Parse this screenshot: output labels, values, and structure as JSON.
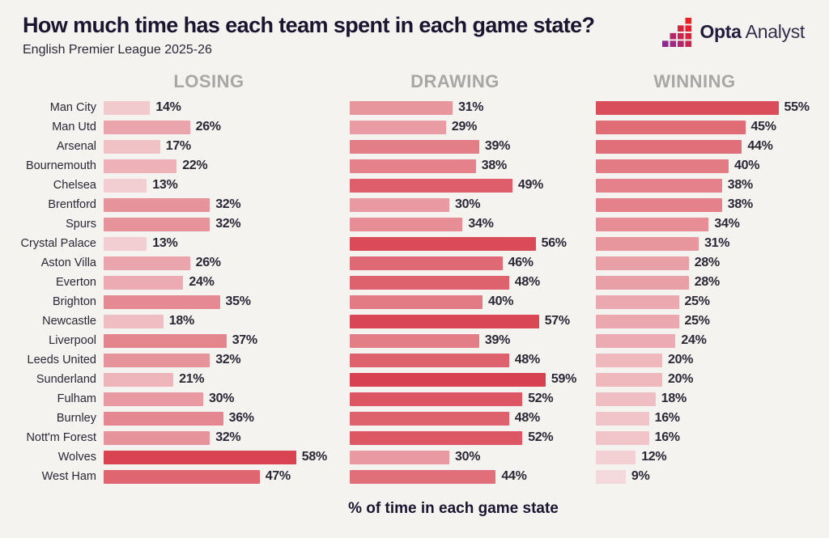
{
  "header": {
    "title": "How much time has each team spent in each game state?",
    "subtitle": "English Premier League 2025-26",
    "logo": {
      "brand_bold": "Opta",
      "brand_light": "Analyst",
      "icon": "opta-stairs-icon",
      "icon_colors": [
        "#8a2a8f",
        "#a1287f",
        "#b62666",
        "#ca2450",
        "#dc213c",
        "#ea1e2e",
        "#f01f24"
      ]
    }
  },
  "chart_data": {
    "type": "bar",
    "orientation": "horizontal",
    "title": "How much time has each team spent in each game state?",
    "subtitle": "English Premier League 2025-26",
    "xlabel": "% of time in each game state",
    "value_suffix": "%",
    "xlim": [
      0,
      60
    ],
    "grid": false,
    "legend_position": "column-headers-top",
    "columns": [
      "LOSING",
      "DRAWING",
      "WINNING"
    ],
    "categories": [
      "Man City",
      "Man Utd",
      "Arsenal",
      "Bournemouth",
      "Chelsea",
      "Brentford",
      "Spurs",
      "Crystal Palace",
      "Aston Villa",
      "Everton",
      "Brighton",
      "Newcastle",
      "Liverpool",
      "Leeds United",
      "Sunderland",
      "Fulham",
      "Burnley",
      "Nott'm Forest",
      "Wolves",
      "West Ham"
    ],
    "series": [
      {
        "name": "LOSING",
        "values": [
          14,
          26,
          17,
          22,
          13,
          32,
          32,
          13,
          26,
          24,
          35,
          18,
          37,
          32,
          21,
          30,
          36,
          32,
          58,
          47
        ]
      },
      {
        "name": "DRAWING",
        "values": [
          31,
          29,
          39,
          38,
          49,
          30,
          34,
          56,
          46,
          48,
          40,
          57,
          39,
          48,
          59,
          52,
          48,
          52,
          30,
          44
        ]
      },
      {
        "name": "WINNING",
        "values": [
          55,
          45,
          44,
          40,
          38,
          38,
          34,
          31,
          28,
          28,
          25,
          25,
          24,
          20,
          20,
          18,
          16,
          16,
          12,
          9
        ]
      }
    ],
    "color_scale": {
      "min_value": 9,
      "max_value": 59,
      "light": "#f4d9dc",
      "dark": "#d8414f"
    },
    "colors": {
      "background": "#f4f3f0",
      "title_text": "#1b1530",
      "body_text": "#2b2735",
      "column_header_text": "#a9a7a5"
    }
  }
}
